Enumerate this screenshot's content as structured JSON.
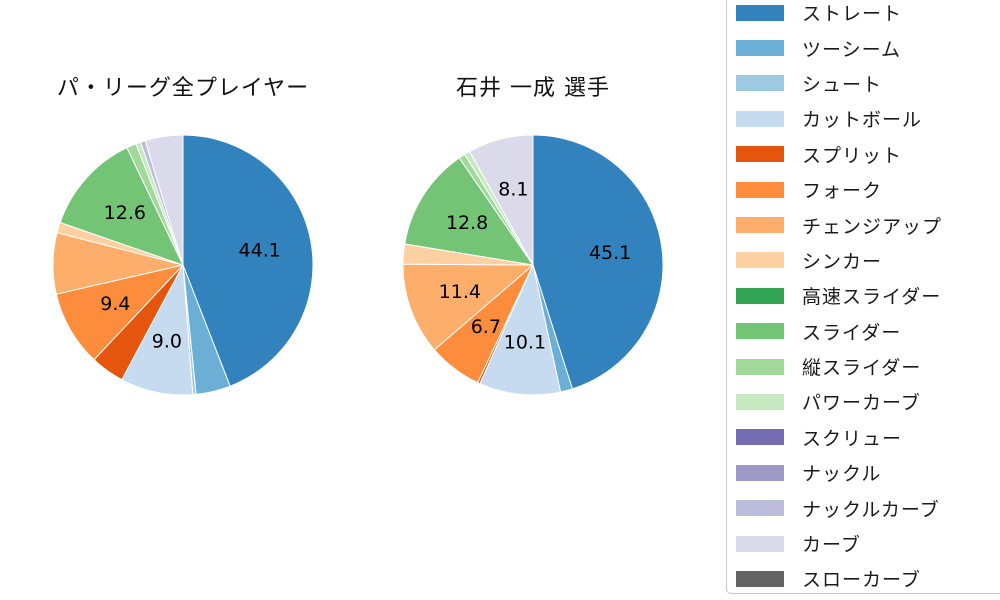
{
  "chart_data": [
    {
      "type": "pie",
      "title": "パ・リーグ全プレイヤー",
      "start_angle": "top",
      "direction": "clockwise",
      "categories": [
        "ストレート",
        "ツーシーム",
        "シュート",
        "カットボール",
        "スプリット",
        "フォーク",
        "チェンジアップ",
        "シンカー",
        "高速スライダー",
        "スライダー",
        "縦スライダー",
        "パワーカーブ",
        "スクリュー",
        "ナックル",
        "ナックルカーブ",
        "カーブ",
        "スローカーブ"
      ],
      "values": [
        44.1,
        4.3,
        0.4,
        9.0,
        4.2,
        9.4,
        7.6,
        1.3,
        0.0,
        12.6,
        1.2,
        0.6,
        0.0,
        0.0,
        0.6,
        4.7,
        0.0
      ],
      "labels_shown": [
        "44.1",
        "",
        "",
        "9.0",
        "",
        "9.4",
        "",
        "",
        "",
        "12.6",
        "",
        "",
        "",
        "",
        "",
        "",
        ""
      ]
    },
    {
      "type": "pie",
      "title": "石井 一成 選手",
      "start_angle": "top",
      "direction": "clockwise",
      "categories": [
        "ストレート",
        "ツーシーム",
        "シュート",
        "カットボール",
        "スプリット",
        "フォーク",
        "チェンジアップ",
        "シンカー",
        "高速スライダー",
        "スライダー",
        "縦スライダー",
        "パワーカーブ",
        "スクリュー",
        "ナックル",
        "ナックルカーブ",
        "カーブ",
        "スローカーブ"
      ],
      "values": [
        45.1,
        1.5,
        0.0,
        10.1,
        0.3,
        6.7,
        11.4,
        2.5,
        0.0,
        12.8,
        0.8,
        0.7,
        0.0,
        0.0,
        0.0,
        8.1,
        0.0
      ],
      "labels_shown": [
        "45.1",
        "",
        "",
        "10.1",
        "",
        "6.7",
        "11.4",
        "",
        "",
        "12.8",
        "",
        "",
        "",
        "",
        "",
        "8.1",
        ""
      ]
    }
  ],
  "legend": {
    "position": "right",
    "items": [
      {
        "label": "ストレート",
        "color": "#3182bd"
      },
      {
        "label": "ツーシーム",
        "color": "#6baed6"
      },
      {
        "label": "シュート",
        "color": "#9ecae1"
      },
      {
        "label": "カットボール",
        "color": "#c6dbef"
      },
      {
        "label": "スプリット",
        "color": "#e6550d"
      },
      {
        "label": "フォーク",
        "color": "#fd8d3c"
      },
      {
        "label": "チェンジアップ",
        "color": "#fdae6b"
      },
      {
        "label": "シンカー",
        "color": "#fdd0a2"
      },
      {
        "label": "高速スライダー",
        "color": "#31a354"
      },
      {
        "label": "スライダー",
        "color": "#74c476"
      },
      {
        "label": "縦スライダー",
        "color": "#a1d99b"
      },
      {
        "label": "パワーカーブ",
        "color": "#c7e9c0"
      },
      {
        "label": "スクリュー",
        "color": "#756bb1"
      },
      {
        "label": "ナックル",
        "color": "#9e9ac8"
      },
      {
        "label": "ナックルカーブ",
        "color": "#bcbddc"
      },
      {
        "label": "カーブ",
        "color": "#dadaeb"
      },
      {
        "label": "スローカーブ",
        "color": "#636363"
      }
    ]
  }
}
